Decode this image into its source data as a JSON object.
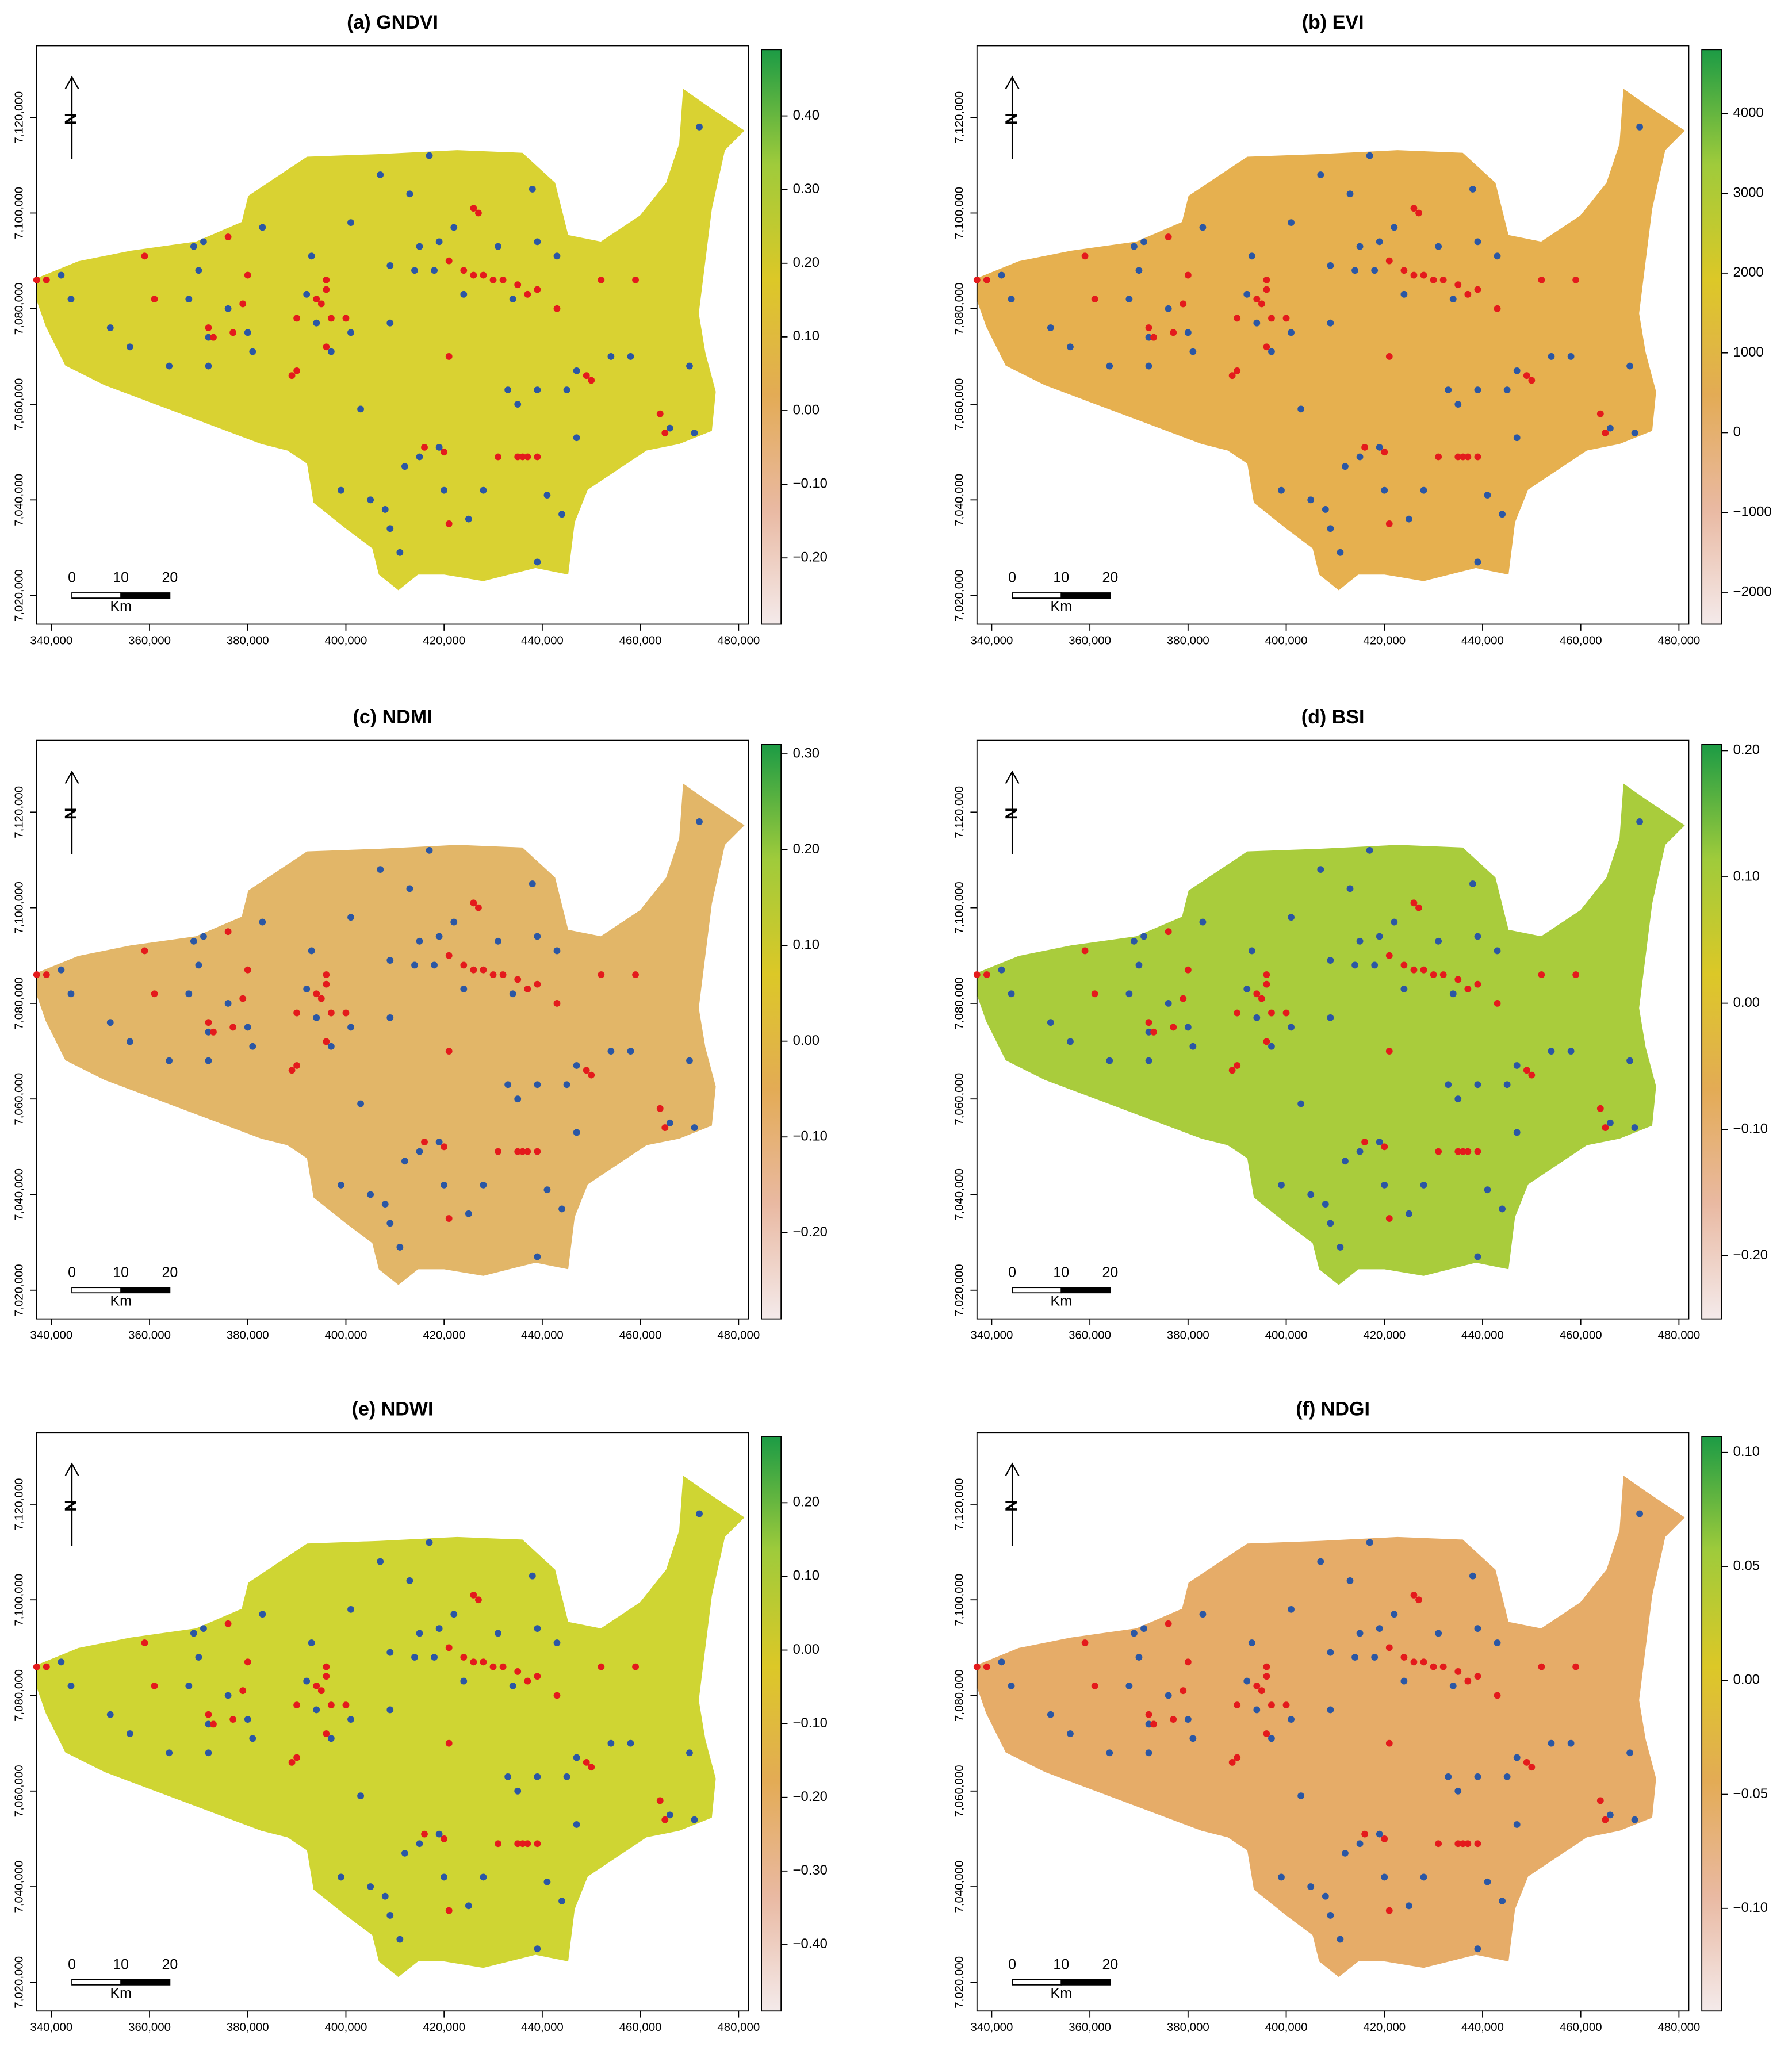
{
  "map": {
    "xlim": [
      337000,
      482000
    ],
    "ylim": [
      7014000,
      7135000
    ],
    "xticks": [
      {
        "value": 340000,
        "label": "340,000"
      },
      {
        "value": 360000,
        "label": "360,000"
      },
      {
        "value": 380000,
        "label": "380,000"
      },
      {
        "value": 400000,
        "label": "400,000"
      },
      {
        "value": 420000,
        "label": "420,000"
      },
      {
        "value": 440000,
        "label": "440,000"
      },
      {
        "value": 460000,
        "label": "460,000"
      },
      {
        "value": 480000,
        "label": "480,000"
      }
    ],
    "yticks": [
      {
        "value": 7020000,
        "label": "7,020,000"
      },
      {
        "value": 7040000,
        "label": "7,040,000"
      },
      {
        "value": 7060000,
        "label": "7,060,000"
      },
      {
        "value": 7080000,
        "label": "7,080,000"
      },
      {
        "value": 7100000,
        "label": "7,100,000"
      },
      {
        "value": 7120000,
        "label": "7,120,000"
      }
    ],
    "north": "N",
    "scale_labels": [
      0,
      10,
      20
    ],
    "scale_unit": "Km",
    "colormap": [
      "#f4eaea",
      "#e9b9a2",
      "#e3ab55",
      "#dcc827",
      "#9fcb3b",
      "#1c9b45"
    ],
    "points": [
      {
        "color": "#2b57a4",
        "x": [
          342000,
          344000,
          352000,
          356000,
          364000,
          369000,
          371000,
          368000,
          372000,
          372000,
          381000,
          383000,
          393000,
          392000,
          394000,
          397000,
          401000,
          401000,
          407000,
          409000,
          409000,
          413000,
          415000,
          419000,
          414000,
          417000,
          418000,
          422000,
          424000,
          431000,
          438000,
          439000,
          434000,
          443000,
          433000,
          435000,
          439000,
          445000,
          447000,
          454000,
          458000,
          470000,
          471000,
          466000,
          447000,
          441000,
          444000,
          439000,
          428000,
          425000,
          420000,
          419000,
          415000,
          412000,
          408000,
          405000,
          403000,
          399000,
          409000,
          411000,
          472000,
          380000,
          370000,
          376000
        ],
        "y": [
          7087000,
          7082000,
          7076000,
          7072000,
          7068000,
          7093000,
          7094000,
          7082000,
          7074000,
          7068000,
          7071000,
          7097000,
          7091000,
          7083000,
          7077000,
          7071000,
          7098000,
          7075000,
          7108000,
          7089000,
          7077000,
          7104000,
          7093000,
          7094000,
          7088000,
          7112000,
          7088000,
          7097000,
          7083000,
          7093000,
          7105000,
          7094000,
          7082000,
          7091000,
          7063000,
          7060000,
          7063000,
          7063000,
          7067000,
          7070000,
          7070000,
          7068000,
          7054000,
          7055000,
          7053000,
          7041000,
          7037000,
          7027000,
          7042000,
          7036000,
          7042000,
          7051000,
          7049000,
          7047000,
          7038000,
          7040000,
          7059000,
          7042000,
          7034000,
          7029000,
          7118000,
          7075000,
          7088000,
          7080000
        ]
      },
      {
        "color": "#e41a1c",
        "x": [
          337000,
          339000,
          359000,
          361000,
          372000,
          373000,
          376000,
          380000,
          379000,
          390000,
          389000,
          394000,
          396000,
          396000,
          395000,
          397000,
          396000,
          400000,
          421000,
          421000,
          424000,
          426000,
          428000,
          430000,
          432000,
          435000,
          437000,
          439000,
          452000,
          459000,
          443000,
          426000,
          427000,
          431000,
          435000,
          436000,
          437000,
          439000,
          416000,
          420000,
          449000,
          450000,
          464000,
          465000,
          421000,
          390000,
          377000
        ],
        "y": [
          7086000,
          7086000,
          7091000,
          7082000,
          7076000,
          7074000,
          7095000,
          7087000,
          7081000,
          7078000,
          7066000,
          7082000,
          7084000,
          7086000,
          7081000,
          7078000,
          7072000,
          7078000,
          7070000,
          7090000,
          7088000,
          7087000,
          7087000,
          7086000,
          7086000,
          7085000,
          7083000,
          7084000,
          7086000,
          7086000,
          7080000,
          7101000,
          7100000,
          7049000,
          7049000,
          7049000,
          7049000,
          7049000,
          7051000,
          7050000,
          7066000,
          7065000,
          7058000,
          7054000,
          7035000,
          7067000,
          7075000
        ]
      }
    ]
  },
  "panels": [
    {
      "title": "(a) GNDVI",
      "map_color": "#d9d232",
      "clim": [
        -0.29,
        0.49
      ],
      "cticks": [
        {
          "value": 0.4,
          "label": "0.40"
        },
        {
          "value": 0.3,
          "label": "0.30"
        },
        {
          "value": 0.2,
          "label": "0.20"
        },
        {
          "value": 0.1,
          "label": "0.10"
        },
        {
          "value": 0,
          "label": "0.00"
        },
        {
          "value": -0.1,
          "label": "−0.10"
        },
        {
          "value": -0.2,
          "label": "−0.20"
        }
      ]
    },
    {
      "title": "(b) EVI",
      "map_color": "#e6b04f",
      "clim": [
        -2400,
        4800
      ],
      "cticks": [
        4000,
        3000,
        2000,
        1000,
        0,
        {
          "value": -1000,
          "label": "−1000"
        },
        {
          "value": -2000,
          "label": "−2000"
        }
      ]
    },
    {
      "title": "(c) NDMI",
      "map_color": "#e2b668",
      "clim": [
        -0.29,
        0.31
      ],
      "cticks": [
        {
          "value": 0.3,
          "label": "0.30"
        },
        {
          "value": 0.2,
          "label": "0.20"
        },
        {
          "value": 0.1,
          "label": "0.10"
        },
        {
          "value": 0,
          "label": "0.00"
        },
        {
          "value": -0.1,
          "label": "−0.10"
        },
        {
          "value": -0.2,
          "label": "−0.20"
        }
      ]
    },
    {
      "title": "(d) BSI",
      "map_color": "#a9cc3c",
      "clim": [
        -0.25,
        0.205
      ],
      "cticks": [
        {
          "value": 0.2,
          "label": "0.20"
        },
        {
          "value": 0.1,
          "label": "0.10"
        },
        {
          "value": 0,
          "label": "0.00"
        },
        {
          "value": -0.1,
          "label": "−0.10"
        },
        {
          "value": -0.2,
          "label": "−0.20"
        }
      ]
    },
    {
      "title": "(e) NDWI",
      "map_color": "#cfd533",
      "clim": [
        -0.49,
        0.29
      ],
      "cticks": [
        {
          "value": 0.2,
          "label": "0.20"
        },
        {
          "value": 0.1,
          "label": "0.10"
        },
        {
          "value": 0,
          "label": "0.00"
        },
        {
          "value": -0.1,
          "label": "−0.10"
        },
        {
          "value": -0.2,
          "label": "−0.20"
        },
        {
          "value": -0.3,
          "label": "−0.30"
        },
        {
          "value": -0.4,
          "label": "−0.40"
        }
      ]
    },
    {
      "title": "(f) NDGI",
      "map_color": "#e6ac68",
      "clim": [
        -0.145,
        0.107
      ],
      "cticks": [
        {
          "value": 0.1,
          "label": "0.10"
        },
        {
          "value": 0.05,
          "label": "0.05"
        },
        {
          "value": 0,
          "label": "0.00"
        },
        {
          "value": -0.05,
          "label": "−0.05"
        },
        {
          "value": -0.1,
          "label": "−0.10"
        }
      ]
    }
  ]
}
